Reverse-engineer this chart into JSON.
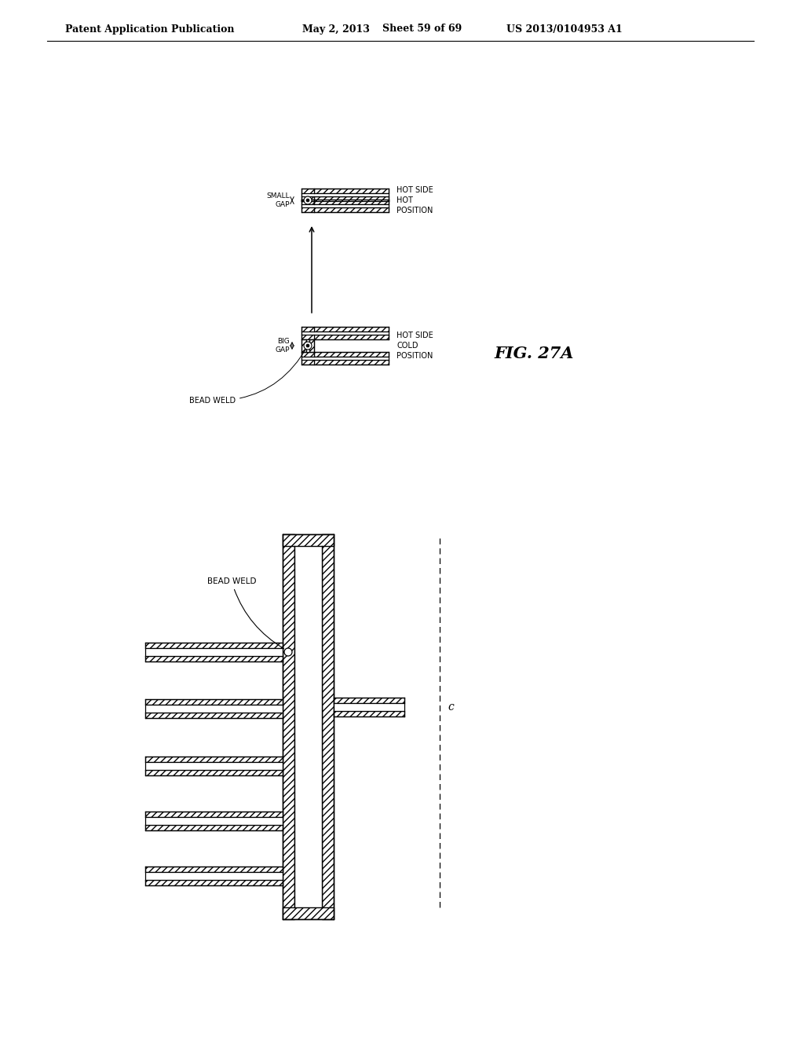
{
  "background_color": "#ffffff",
  "line_color": "#000000",
  "lw": 1.0,
  "header_left": "Patent Application Publication",
  "header_mid1": "May 2, 2013",
  "header_mid2": "Sheet 59 of 69",
  "header_right": "US 2013/0104953 A1",
  "fig_label": "FIG. 27A",
  "note_c": "c",
  "label_bead_weld_upper": "BEAD WELD",
  "label_bead_weld_lower": "BEAD WELD",
  "label_big_gap": "BIG\nGAP",
  "label_small_gap": "SMALL\nGAP",
  "label_hot_cold": "HOT SIDE\nCOLD\nPOSITION",
  "label_hot_hot": "HOT SIDE\nHOT\nPOSITION"
}
